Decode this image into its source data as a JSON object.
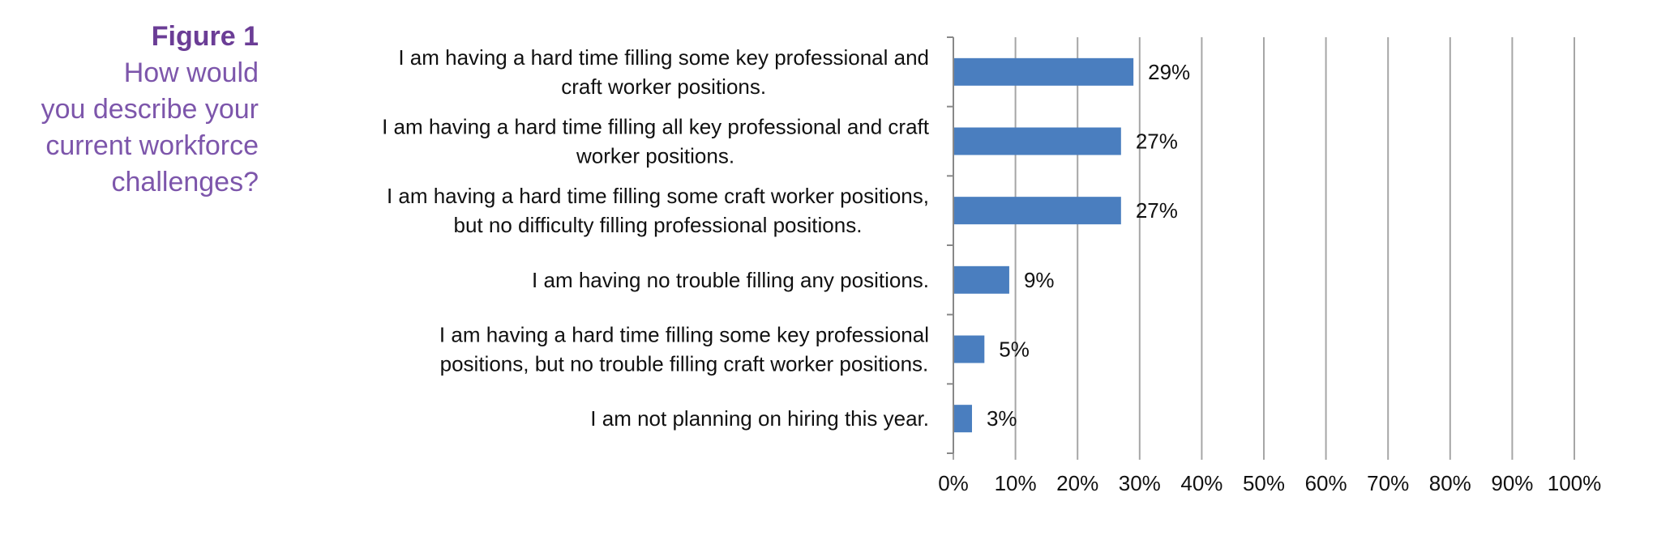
{
  "figure": {
    "label": "Figure 1",
    "question": "How would\nyou describe your\ncurrent workforce\nchallenges?"
  },
  "colors": {
    "bar": "#4a7ebf",
    "grid": "#a6a6a6",
    "axis": "#888888",
    "caption": "#7a4fa3"
  },
  "chart_data": {
    "type": "bar",
    "orientation": "horizontal",
    "categories": [
      [
        "I am having a hard time filling some key professional and",
        "craft worker positions."
      ],
      [
        "I am having a hard time filling all key professional and craft",
        "worker positions."
      ],
      [
        "I am having a hard time filling some craft worker positions,",
        "but no difficulty filling professional positions."
      ],
      [
        "I am having no trouble filling any positions."
      ],
      [
        "I am having a hard time filling some key professional",
        "positions, but no trouble filling craft worker positions."
      ],
      [
        "I am not planning on hiring this year."
      ]
    ],
    "values": [
      29,
      27,
      27,
      9,
      5,
      3
    ],
    "value_labels": [
      "29%",
      "27%",
      "27%",
      "9%",
      "5%",
      "3%"
    ],
    "xlim": [
      0,
      100
    ],
    "x_ticks": [
      0,
      10,
      20,
      30,
      40,
      50,
      60,
      70,
      80,
      90,
      100
    ],
    "x_tick_labels": [
      "0%",
      "10%",
      "20%",
      "30%",
      "40%",
      "50%",
      "60%",
      "70%",
      "80%",
      "90%",
      "100%"
    ],
    "grid": true,
    "legend": "none"
  }
}
